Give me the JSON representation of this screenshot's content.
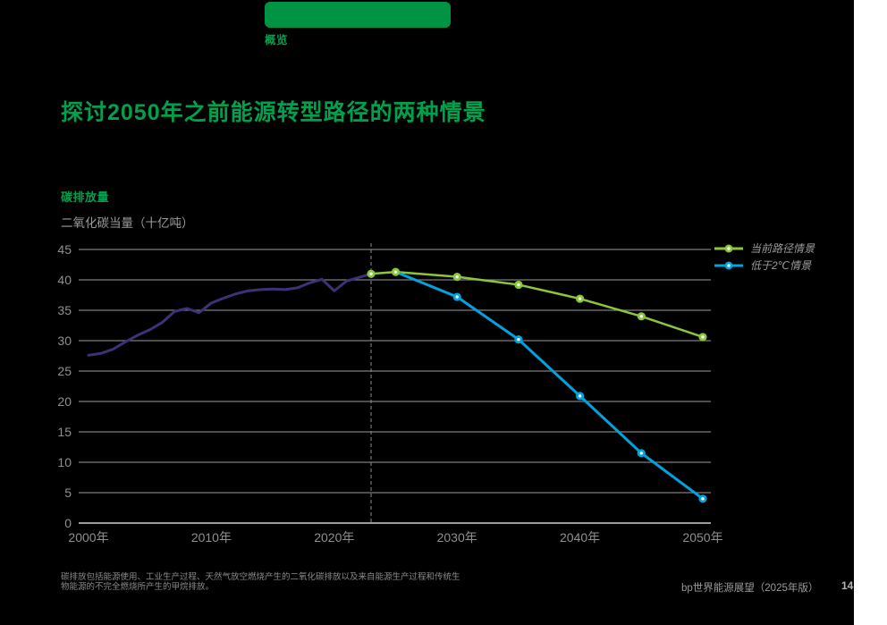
{
  "slide": {
    "tab_label": "概览",
    "title": "探讨2050年之前能源转型路径的两种情景",
    "footnote": "碳排放包括能源使用、工业生产过程、天然气放空燃烧产生的二氧化碳排放以及来自能源生产过程和传统生物能源的不完全燃烧所产生的甲烷排放。",
    "footer_source": "bp世界能源展望（2025年版）",
    "page_number": "14"
  },
  "colors": {
    "accent_green": "#009344",
    "title_green": "#00A04C",
    "line_green": "#8CC63C",
    "line_blue": "#00A2E0",
    "line_history": "#3B3377",
    "grid": "#7d7d7d",
    "axis": "#9c9c9c",
    "text_gray": "#8f8f8f"
  },
  "chart_data": {
    "type": "line",
    "title": "碳排放量",
    "unit_label": "二氧化碳当量（十亿吨）",
    "ylim": [
      0,
      45
    ],
    "ytick_step": 5,
    "xtick_years": [
      2000,
      2010,
      2020,
      2030,
      2040,
      2050
    ],
    "xtick_labels": [
      "2000年",
      "2010年",
      "2020年",
      "2030年",
      "2040年",
      "2050年"
    ],
    "divider_year": 2023,
    "grid": true,
    "legend_position": "top-right",
    "series": [
      {
        "id": "history",
        "x": [
          2000,
          2001,
          2002,
          2003,
          2004,
          2005,
          2006,
          2007,
          2008,
          2009,
          2010,
          2011,
          2012,
          2013,
          2014,
          2015,
          2016,
          2017,
          2018,
          2019,
          2020,
          2021,
          2022,
          2023
        ],
        "values": [
          27.6,
          27.9,
          28.6,
          29.8,
          30.9,
          31.8,
          33.0,
          34.8,
          35.3,
          34.6,
          36.2,
          37.0,
          37.7,
          38.2,
          38.4,
          38.5,
          38.4,
          38.7,
          39.5,
          40.1,
          38.2,
          39.8,
          40.4,
          41.0
        ],
        "color_key": "line_history",
        "width": 3,
        "markers": false
      },
      {
        "id": "current-trajectory",
        "name": "当前路径情景",
        "x": [
          2023,
          2025,
          2030,
          2035,
          2040,
          2045,
          2050
        ],
        "values": [
          41.0,
          41.3,
          40.5,
          39.2,
          36.9,
          34.0,
          30.6
        ],
        "color_key": "line_green",
        "width": 2.5,
        "markers": true
      },
      {
        "id": "below-2c",
        "name": "低于2℃情景",
        "x": [
          2025,
          2030,
          2035,
          2040,
          2045,
          2050
        ],
        "values": [
          41.3,
          37.2,
          30.2,
          20.9,
          11.5,
          4.0
        ],
        "color_key": "line_blue",
        "width": 3,
        "markers": true,
        "marker_from": 2030
      }
    ]
  }
}
